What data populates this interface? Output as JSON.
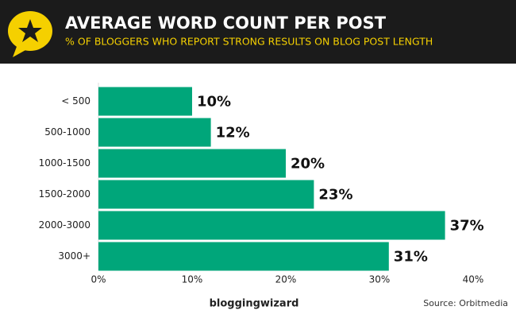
{
  "chart_data": {
    "type": "bar",
    "orientation": "horizontal",
    "title": "AVERAGE WORD COUNT PER POST",
    "subtitle": "% OF BLOGGERS WHO REPORT STRONG RESULTS ON BLOG POST LENGTH",
    "categories": [
      "< 500",
      "500-1000",
      "1000-1500",
      "1500-2000",
      "2000-3000",
      "3000+"
    ],
    "values": [
      10,
      12,
      20,
      23,
      37,
      31
    ],
    "value_labels": [
      "10%",
      "12%",
      "20%",
      "23%",
      "37%",
      "31%"
    ],
    "color": "#00a67a",
    "xlim": [
      0,
      40
    ],
    "xticks": [
      {
        "value": 0,
        "label": "0%"
      },
      {
        "value": 10,
        "label": "10%"
      },
      {
        "value": 20,
        "label": "20%"
      },
      {
        "value": 30,
        "label": "30%"
      },
      {
        "value": 40,
        "label": "40%"
      }
    ],
    "grid": false,
    "source": "Source: Orbitmedia",
    "logo": "bloggingwizard"
  }
}
